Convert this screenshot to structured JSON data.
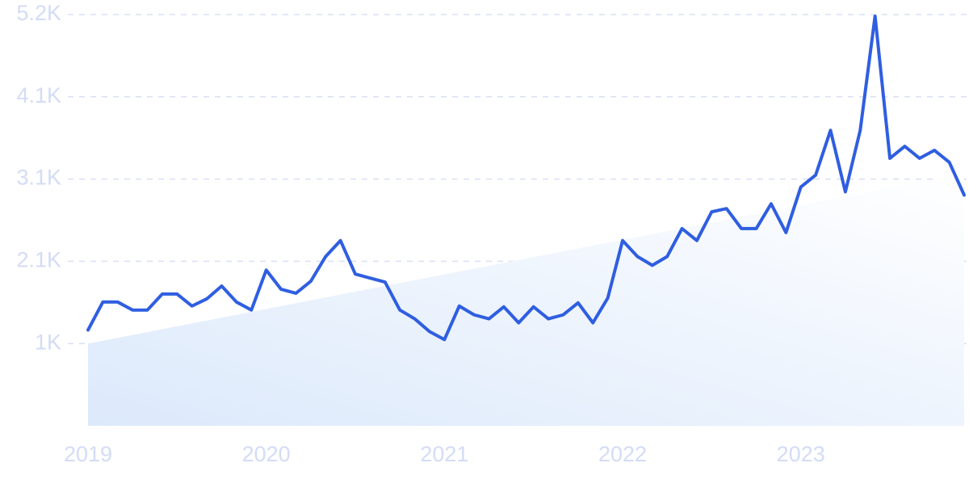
{
  "chart_data": {
    "type": "line",
    "categories": [
      "2019",
      null,
      null,
      null,
      null,
      null,
      null,
      null,
      null,
      null,
      null,
      null,
      "2020",
      null,
      null,
      null,
      null,
      null,
      null,
      null,
      null,
      null,
      null,
      null,
      "2021",
      null,
      null,
      null,
      null,
      null,
      null,
      null,
      null,
      null,
      null,
      null,
      "2022",
      null,
      null,
      null,
      null,
      null,
      null,
      null,
      null,
      null,
      null,
      null,
      "2023",
      null,
      null,
      null,
      null,
      null,
      null,
      null,
      null,
      null,
      null,
      null
    ],
    "values": [
      1200,
      1550,
      1550,
      1450,
      1450,
      1650,
      1650,
      1500,
      1590,
      1750,
      1550,
      1450,
      1950,
      1710,
      1660,
      1810,
      2120,
      2320,
      1900,
      1850,
      1800,
      1450,
      1340,
      1180,
      1080,
      1500,
      1390,
      1340,
      1490,
      1290,
      1490,
      1340,
      1390,
      1540,
      1290,
      1600,
      2320,
      2120,
      2010,
      2120,
      2470,
      2320,
      2680,
      2720,
      2470,
      2470,
      2780,
      2420,
      2990,
      3140,
      3700,
      2930,
      3700,
      5130,
      3350,
      3500,
      3350,
      3450,
      3300,
      2890
    ],
    "color": "#2f5ee0",
    "trend": {
      "values": [
        1030,
        3160
      ],
      "color": "#dce9fb"
    },
    "ylim": [
      0,
      5150
    ],
    "yticks": [
      {
        "value": 1030,
        "label": "1K"
      },
      {
        "value": 2060,
        "label": "2.1K"
      },
      {
        "value": 3090,
        "label": "3.1K"
      },
      {
        "value": 4120,
        "label": "4.1K"
      },
      {
        "value": 5150,
        "label": "5.2K"
      }
    ],
    "grid": true
  }
}
